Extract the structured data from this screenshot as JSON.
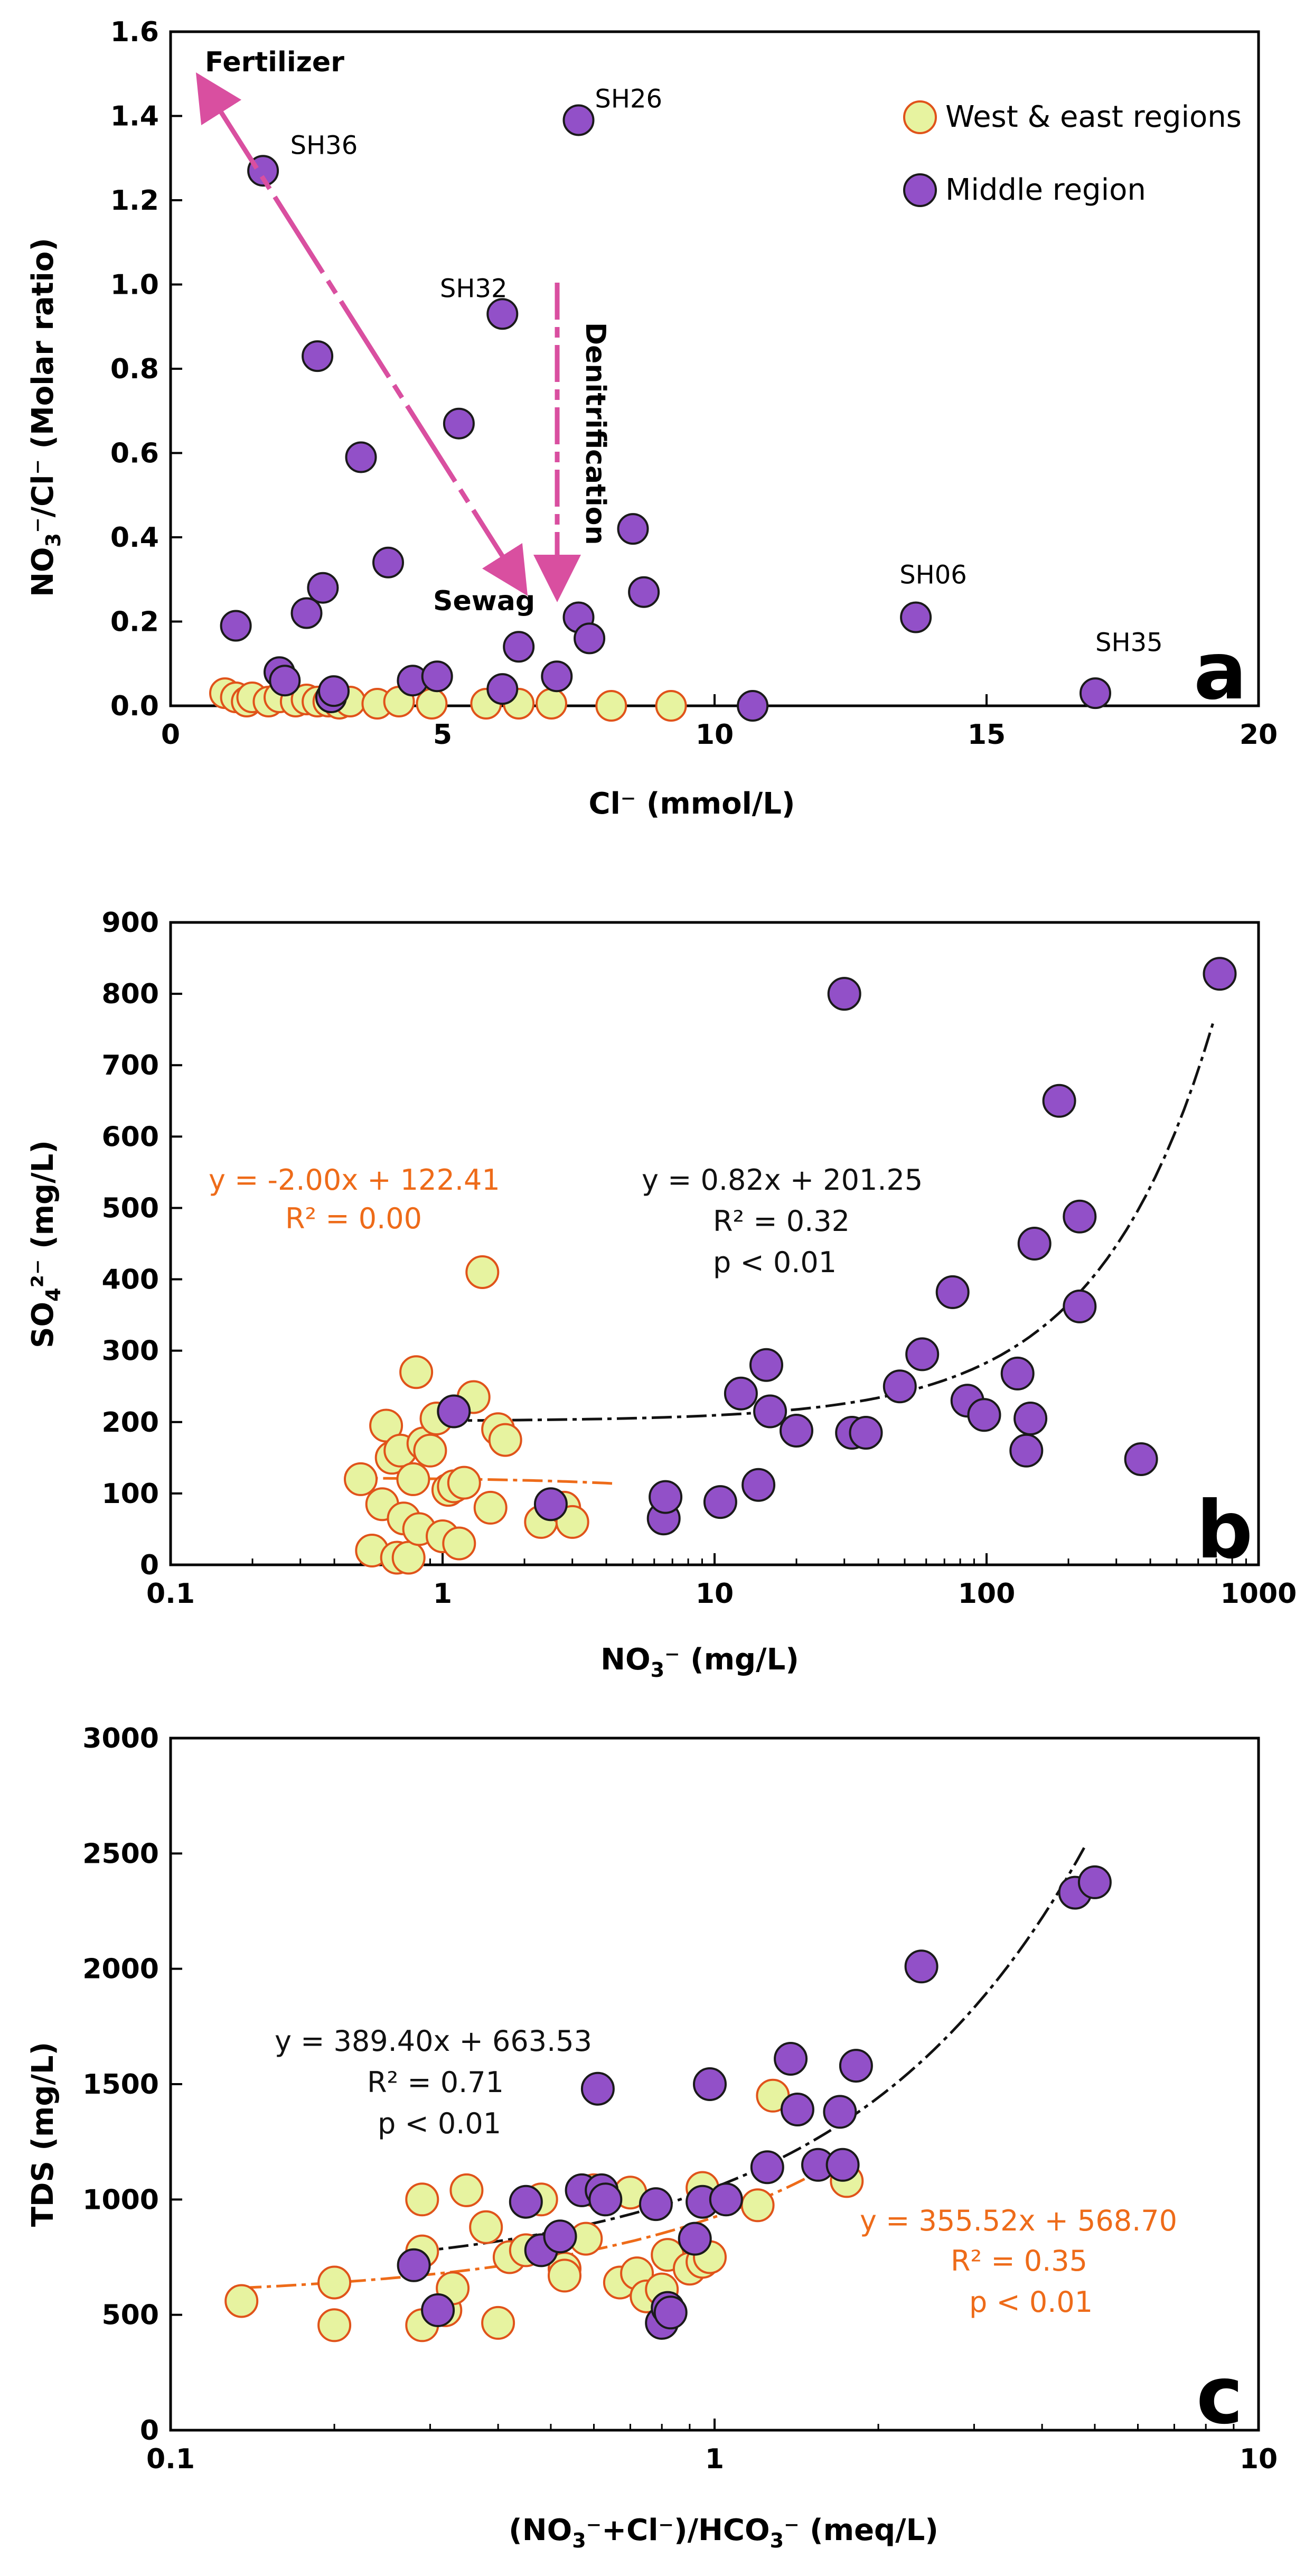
{
  "colors": {
    "west_fill": "#e7f3a0",
    "west_stroke": "#e0531a",
    "middle_fill": "#9250c8",
    "middle_stroke": "#1a1a1a",
    "arrow": "#d94fa0",
    "orange_fit": "#ee6b19",
    "black_fit": "#111111"
  },
  "legend": {
    "west": "West & east regions",
    "middle": "Middle region"
  },
  "chart_data": [
    {
      "type": "scatter",
      "panel_label": "a",
      "xlabel": "Cl⁻ (mmol/L)",
      "ylabel_parts": [
        "NO",
        "3",
        "⁻/Cl⁻  (Molar ratio)"
      ],
      "xlim": [
        0,
        20
      ],
      "ylim": [
        0,
        1.6
      ],
      "xticks": [
        "0",
        "5",
        "10",
        "15",
        "20"
      ],
      "yticks": [
        "0.0",
        "0.2",
        "0.4",
        "0.6",
        "0.8",
        "1.0",
        "1.2",
        "1.4",
        "1.6"
      ],
      "series": [
        {
          "name": "West & east regions",
          "points": [
            [
              1.0,
              0.03
            ],
            [
              1.2,
              0.02
            ],
            [
              1.4,
              0.01
            ],
            [
              1.5,
              0.02
            ],
            [
              1.8,
              0.01
            ],
            [
              2.0,
              0.02
            ],
            [
              2.3,
              0.01
            ],
            [
              2.5,
              0.015
            ],
            [
              2.7,
              0.01
            ],
            [
              2.9,
              0.01
            ],
            [
              3.1,
              0.005
            ],
            [
              3.3,
              0.01
            ],
            [
              3.8,
              0.005
            ],
            [
              4.2,
              0.01
            ],
            [
              4.8,
              0.005
            ],
            [
              5.8,
              0.005
            ],
            [
              6.4,
              0.005
            ],
            [
              7.0,
              0.005
            ],
            [
              8.1,
              0.0
            ],
            [
              9.2,
              0.0
            ]
          ]
        },
        {
          "name": "Middle region",
          "points": [
            [
              1.2,
              0.19
            ],
            [
              1.7,
              1.27
            ],
            [
              2.0,
              0.08
            ],
            [
              2.1,
              0.06
            ],
            [
              2.5,
              0.22
            ],
            [
              2.7,
              0.83
            ],
            [
              2.8,
              0.28
            ],
            [
              2.95,
              0.02
            ],
            [
              3.0,
              0.035
            ],
            [
              3.5,
              0.59
            ],
            [
              4.0,
              0.34
            ],
            [
              4.45,
              0.06
            ],
            [
              4.9,
              0.07
            ],
            [
              5.3,
              0.67
            ],
            [
              6.1,
              0.93
            ],
            [
              6.1,
              0.04
            ],
            [
              6.4,
              0.14
            ],
            [
              7.1,
              0.07
            ],
            [
              7.5,
              0.21
            ],
            [
              7.5,
              1.39
            ],
            [
              7.7,
              0.16
            ],
            [
              8.5,
              0.42
            ],
            [
              8.7,
              0.27
            ],
            [
              10.7,
              0.0
            ],
            [
              13.7,
              0.21
            ],
            [
              17.0,
              0.03
            ]
          ]
        }
      ],
      "annotations": [
        {
          "text": "SH36",
          "x": 2.2,
          "y": 1.31
        },
        {
          "text": "SH26",
          "x": 7.8,
          "y": 1.42
        },
        {
          "text": "SH32",
          "x": 4.95,
          "y": 0.97
        },
        {
          "text": "SH06",
          "x": 13.4,
          "y": 0.29
        },
        {
          "text": "SH35",
          "x": 17.0,
          "y": 0.13
        }
      ],
      "arrow_labels": {
        "fertilizer": "Fertilizer",
        "sewage": "Sewag",
        "denitrification": "Denitrification"
      }
    },
    {
      "type": "scatter",
      "panel_label": "b",
      "xlabel_parts": [
        "NO",
        "3",
        "⁻ (mg/L)"
      ],
      "ylabel_parts": [
        "SO",
        "4",
        "²⁻ (mg/L)"
      ],
      "xscale": "log",
      "xlim": [
        0.1,
        1000
      ],
      "ylim": [
        0,
        900
      ],
      "xticks": [
        "0.1",
        "1",
        "10",
        "100",
        "1000"
      ],
      "yticks": [
        "0",
        "100",
        "200",
        "300",
        "400",
        "500",
        "600",
        "700",
        "800",
        "900"
      ],
      "series": [
        {
          "name": "West & east regions",
          "points": [
            [
              0.5,
              120
            ],
            [
              0.55,
              20
            ],
            [
              0.6,
              85
            ],
            [
              0.62,
              195
            ],
            [
              0.65,
              150
            ],
            [
              0.68,
              10
            ],
            [
              0.7,
              160
            ],
            [
              0.72,
              65
            ],
            [
              0.75,
              10
            ],
            [
              0.78,
              120
            ],
            [
              0.8,
              270
            ],
            [
              0.82,
              50
            ],
            [
              0.85,
              170
            ],
            [
              0.9,
              160
            ],
            [
              0.95,
              205
            ],
            [
              1.0,
              40
            ],
            [
              1.05,
              105
            ],
            [
              1.1,
              110
            ],
            [
              1.15,
              30
            ],
            [
              1.2,
              115
            ],
            [
              1.3,
              235
            ],
            [
              1.4,
              410
            ],
            [
              1.5,
              80
            ],
            [
              1.6,
              190
            ],
            [
              1.7,
              175
            ],
            [
              2.3,
              60
            ],
            [
              2.8,
              80
            ],
            [
              3.0,
              60
            ]
          ]
        },
        {
          "name": "Middle region",
          "points": [
            [
              1.1,
              215
            ],
            [
              2.5,
              85
            ],
            [
              6.5,
              65
            ],
            [
              6.6,
              95
            ],
            [
              10.5,
              88
            ],
            [
              12.5,
              240
            ],
            [
              14.5,
              112
            ],
            [
              15.5,
              280
            ],
            [
              16.0,
              215
            ],
            [
              20,
              188
            ],
            [
              30,
              800
            ],
            [
              32,
              185
            ],
            [
              36,
              185
            ],
            [
              48,
              250
            ],
            [
              58,
              295
            ],
            [
              75,
              382
            ],
            [
              85,
              230
            ],
            [
              98,
              210
            ],
            [
              130,
              268
            ],
            [
              140,
              160
            ],
            [
              145,
              205
            ],
            [
              150,
              450
            ],
            [
              185,
              650
            ],
            [
              220,
              488
            ],
            [
              220,
              362
            ],
            [
              370,
              148
            ],
            [
              720,
              828
            ]
          ]
        }
      ],
      "fits": [
        {
          "series": "West & east regions",
          "equation": "y = -2.00x + 122.41",
          "r2": "R² = 0.00",
          "slope": -2.0,
          "intercept": 122.41,
          "xrange": [
            0.45,
            4.2
          ]
        },
        {
          "series": "Middle region",
          "equation": "y = 0.82x + 201.25",
          "r2": "R² = 0.32",
          "p": "p < 0.01",
          "slope": 0.82,
          "intercept": 201.25,
          "xrange": [
            1.0,
            680
          ]
        }
      ]
    },
    {
      "type": "scatter",
      "panel_label": "c",
      "xlabel_parts": [
        "(NO",
        "3",
        "⁻+Cl⁻)/HCO",
        "3",
        "⁻  (meq/L)"
      ],
      "ylabel": "TDS (mg/L)",
      "xscale": "log",
      "xlim": [
        0.1,
        10
      ],
      "ylim": [
        0,
        3000
      ],
      "xticks": [
        "0.1",
        "1",
        "10"
      ],
      "yticks": [
        "0",
        "500",
        "1000",
        "1500",
        "2000",
        "2500",
        "3000"
      ],
      "series": [
        {
          "name": "West & east regions",
          "points": [
            [
              0.135,
              560
            ],
            [
              0.2,
              640
            ],
            [
              0.2,
              455
            ],
            [
              0.29,
              1000
            ],
            [
              0.29,
              775
            ],
            [
              0.29,
              455
            ],
            [
              0.32,
              520
            ],
            [
              0.33,
              615
            ],
            [
              0.35,
              1040
            ],
            [
              0.38,
              880
            ],
            [
              0.4,
              465
            ],
            [
              0.42,
              750
            ],
            [
              0.45,
              780
            ],
            [
              0.48,
              1000
            ],
            [
              0.53,
              700
            ],
            [
              0.53,
              670
            ],
            [
              0.58,
              830
            ],
            [
              0.6,
              1040
            ],
            [
              0.67,
              640
            ],
            [
              0.7,
              1030
            ],
            [
              0.72,
              680
            ],
            [
              0.75,
              580
            ],
            [
              0.8,
              610
            ],
            [
              0.82,
              760
            ],
            [
              0.9,
              700
            ],
            [
              0.95,
              730
            ],
            [
              0.95,
              1050
            ],
            [
              0.98,
              750
            ],
            [
              1.2,
              975
            ],
            [
              1.28,
              1450
            ],
            [
              1.75,
              1080
            ]
          ]
        },
        {
          "name": "Middle region",
          "points": [
            [
              0.28,
              715
            ],
            [
              0.31,
              520
            ],
            [
              0.45,
              990
            ],
            [
              0.48,
              780
            ],
            [
              0.52,
              840
            ],
            [
              0.57,
              1040
            ],
            [
              0.61,
              1480
            ],
            [
              0.62,
              1040
            ],
            [
              0.63,
              1000
            ],
            [
              0.78,
              980
            ],
            [
              0.8,
              465
            ],
            [
              0.82,
              530
            ],
            [
              0.83,
              510
            ],
            [
              0.92,
              830
            ],
            [
              0.95,
              990
            ],
            [
              0.98,
              1500
            ],
            [
              1.05,
              1000
            ],
            [
              1.25,
              1140
            ],
            [
              1.38,
              1610
            ],
            [
              1.42,
              1390
            ],
            [
              1.55,
              1150
            ],
            [
              1.7,
              1380
            ],
            [
              1.72,
              1150
            ],
            [
              1.82,
              1580
            ],
            [
              2.4,
              2010
            ],
            [
              4.6,
              2330
            ],
            [
              5.0,
              2375
            ]
          ]
        }
      ],
      "fits": [
        {
          "series": "Middle region",
          "equation": "y = 389.40x + 663.53",
          "r2": "R² = 0.71",
          "p": "p < 0.01",
          "slope": 389.4,
          "intercept": 663.53,
          "xrange": [
            0.28,
            4.8
          ]
        },
        {
          "series": "West & east regions",
          "equation": "y = 355.52x + 568.70",
          "r2": "R² = 0.35",
          "p": "p < 0.01",
          "slope": 355.52,
          "intercept": 568.7,
          "xrange": [
            0.135,
            1.75
          ]
        }
      ]
    }
  ]
}
